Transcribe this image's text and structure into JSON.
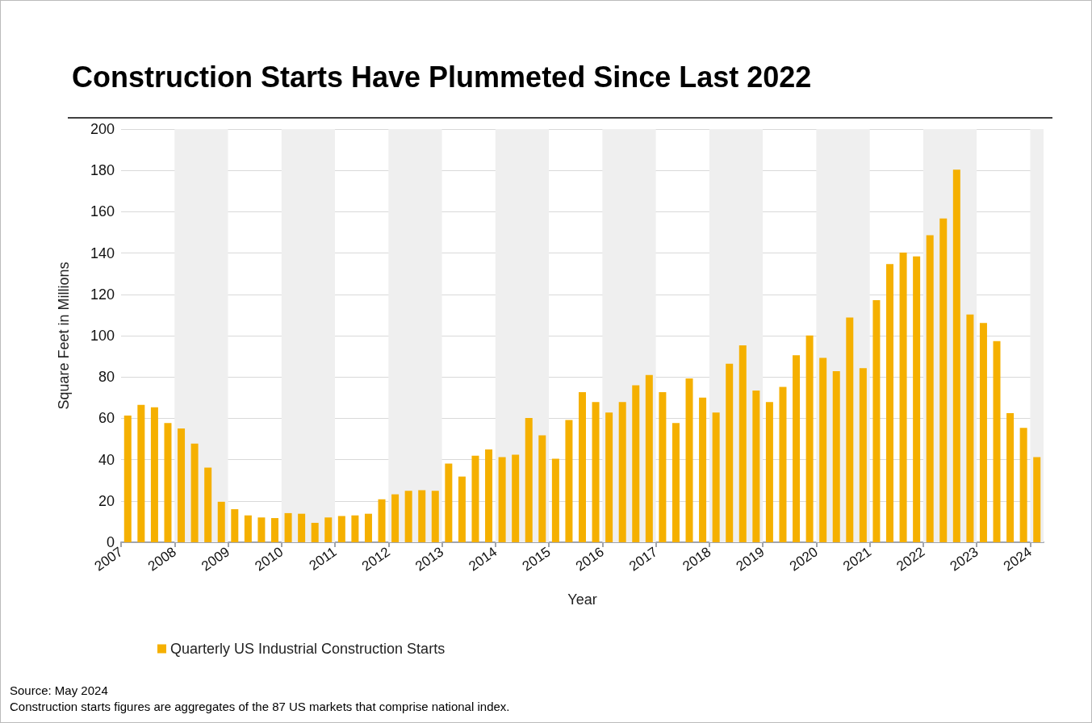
{
  "chart_data": {
    "type": "bar",
    "title": "Construction Starts Have Plummeted Since Last 2022",
    "xlabel": "Year",
    "ylabel": "Square Feet in Millions",
    "x": [
      2007.125,
      2007.375,
      2007.625,
      2007.875,
      2008.125,
      2008.375,
      2008.625,
      2008.875,
      2009.125,
      2009.375,
      2009.625,
      2009.875,
      2010.125,
      2010.375,
      2010.625,
      2010.875,
      2011.125,
      2011.375,
      2011.625,
      2011.875,
      2012.125,
      2012.375,
      2012.625,
      2012.875,
      2013.125,
      2013.375,
      2013.625,
      2013.875,
      2014.125,
      2014.375,
      2014.625,
      2014.875,
      2015.125,
      2015.375,
      2015.625,
      2015.875,
      2016.125,
      2016.375,
      2016.625,
      2016.875,
      2017.125,
      2017.375,
      2017.625,
      2017.875,
      2018.125,
      2018.375,
      2018.625,
      2018.875,
      2019.125,
      2019.375,
      2019.625,
      2019.875,
      2020.125,
      2020.375,
      2020.625,
      2020.875,
      2021.125,
      2021.375,
      2021.625,
      2021.875,
      2022.125,
      2022.375,
      2022.625,
      2022.875,
      2023.125,
      2023.375,
      2023.625,
      2023.875,
      2024.125
    ],
    "series": [
      {
        "name": "Quarterly US Industrial Construction Starts",
        "color": "#f5b000",
        "values": [
          61.3,
          66.5,
          65.3,
          57.7,
          55.1,
          47.8,
          36.1,
          19.6,
          16.0,
          13.0,
          12.0,
          11.7,
          14.1,
          13.8,
          9.4,
          12.0,
          12.7,
          13.0,
          13.8,
          20.8,
          23.2,
          24.9,
          25.2,
          24.9,
          38.1,
          31.8,
          41.9,
          44.9,
          41.2,
          42.4,
          60.2,
          51.8,
          40.4,
          59.2,
          72.7,
          67.9,
          62.8,
          67.9,
          76.0,
          81.0,
          72.7,
          57.7,
          79.3,
          70.0,
          62.8,
          86.4,
          95.3,
          73.4,
          67.9,
          75.2,
          90.5,
          100.1,
          89.3,
          82.8,
          108.8,
          84.3,
          117.2,
          134.7,
          140.2,
          138.4,
          148.6,
          156.7,
          180.4,
          110.3,
          106.2,
          97.4,
          62.5,
          55.4,
          41.2
        ]
      }
    ],
    "xlim": [
      2007,
      2024.25
    ],
    "xticks": [
      2007,
      2008,
      2009,
      2010,
      2011,
      2012,
      2013,
      2014,
      2015,
      2016,
      2017,
      2018,
      2019,
      2020,
      2021,
      2022,
      2023,
      2024
    ],
    "ylim": [
      0,
      200
    ],
    "yticks": [
      0,
      20,
      40,
      60,
      80,
      100,
      120,
      140,
      160,
      180,
      200
    ],
    "bands": [
      {
        "axis": "x",
        "from": 2008,
        "to": 2009,
        "color": "#efefef"
      },
      {
        "axis": "x",
        "from": 2010,
        "to": 2011,
        "color": "#efefef"
      },
      {
        "axis": "x",
        "from": 2012,
        "to": 2013,
        "color": "#efefef"
      },
      {
        "axis": "x",
        "from": 2014,
        "to": 2015,
        "color": "#efefef"
      },
      {
        "axis": "x",
        "from": 2016,
        "to": 2017,
        "color": "#efefef"
      },
      {
        "axis": "x",
        "from": 2018,
        "to": 2019,
        "color": "#efefef"
      },
      {
        "axis": "x",
        "from": 2020,
        "to": 2021,
        "color": "#efefef"
      },
      {
        "axis": "x",
        "from": 2022,
        "to": 2023,
        "color": "#efefef"
      },
      {
        "axis": "x",
        "from": 2024,
        "to": 2024.25,
        "color": "#efefef"
      }
    ],
    "grid": "y",
    "legend": "bottom left",
    "annotations": [
      "Source: May 2024",
      "Construction starts figures are aggregates of the 87 US markets that comprise national index."
    ]
  }
}
